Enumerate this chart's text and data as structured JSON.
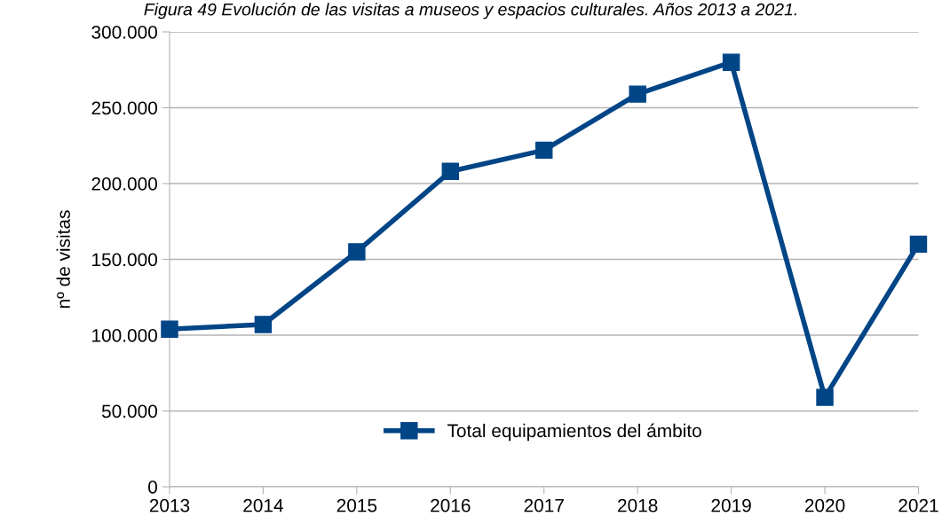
{
  "chart_data": {
    "type": "line",
    "title": "Figura 49 Evolución de las visitas a museos y espacios culturales. Años 2013 a 2021.",
    "ylabel": "nº de visitas",
    "categories": [
      "2013",
      "2014",
      "2015",
      "2016",
      "2017",
      "2018",
      "2019",
      "2020",
      "2021"
    ],
    "series": [
      {
        "name": "Total equipamientos del ámbito",
        "color": "#004586",
        "values": [
          104000,
          107000,
          155000,
          208000,
          222000,
          259000,
          280000,
          59000,
          160000
        ]
      }
    ],
    "ylim": [
      0,
      300000
    ],
    "yticks": [
      {
        "value": 0,
        "label": "0"
      },
      {
        "value": 50000,
        "label": "50.000"
      },
      {
        "value": 100000,
        "label": "100.000"
      },
      {
        "value": 150000,
        "label": "150.000"
      },
      {
        "value": 200000,
        "label": "200.000"
      },
      {
        "value": 250000,
        "label": "250.000"
      },
      {
        "value": 300000,
        "label": "300.000"
      }
    ],
    "grid": "y",
    "legend": "bottom",
    "marker": "square",
    "line_style": "solid"
  }
}
